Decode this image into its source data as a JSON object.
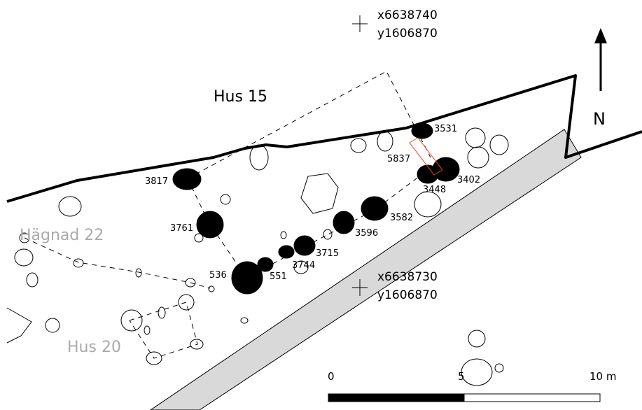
{
  "labels": {
    "house_15": "Hus 15",
    "enclosure_22": "Hägnad 22",
    "house_20": "Hus 20",
    "north": "N"
  },
  "coordinates": [
    {
      "x": "x6638740",
      "y": "y1606870"
    },
    {
      "x": "x6638730",
      "y": "y1606870"
    }
  ],
  "postholes": [
    "3531",
    "5837",
    "3402",
    "3448",
    "3817",
    "3582",
    "3596",
    "3761",
    "3715",
    "3744",
    "536",
    "551"
  ],
  "scale": {
    "start": "0",
    "mid": "5",
    "end": "10 m"
  },
  "colors": {
    "feature_fill": "#000000",
    "trench_fill": "#d9d9d9",
    "highlight": "#e8412c",
    "other_structure_label": "#aaaaaa"
  }
}
